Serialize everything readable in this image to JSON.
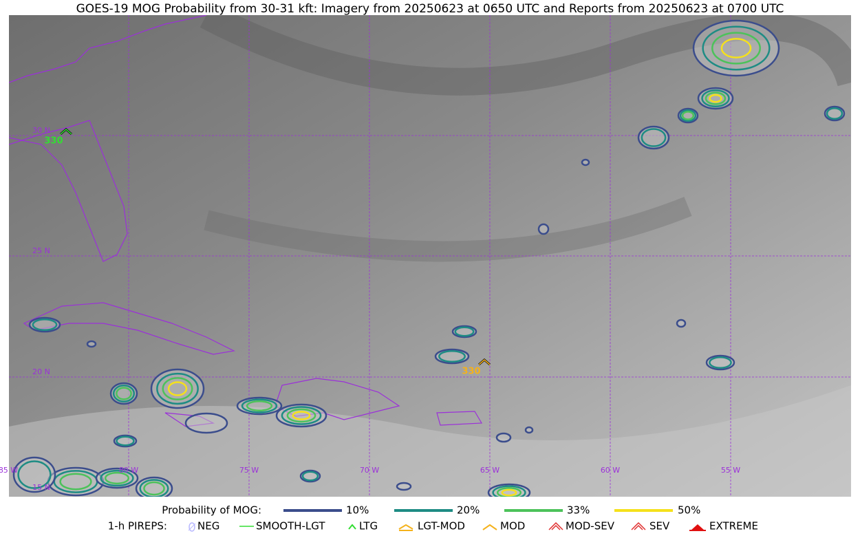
{
  "title": "GOES-19 MOG Probability from 30-31 kft: Imagery from 20250623 at 0650 UTC and Reports from 20250623 at 0700 UTC",
  "map": {
    "lat_labels": [
      "30 N",
      "25 N",
      "20 N",
      "15 N"
    ],
    "lon_labels": [
      "85 W",
      "80 W",
      "75 W",
      "70 W",
      "65 W",
      "60 W",
      "55 W"
    ],
    "pireps": [
      {
        "label": "330"
      },
      {
        "label": "330"
      }
    ]
  },
  "legend": {
    "mog_title": "Probability of MOG:",
    "mog_levels": [
      "10%",
      "20%",
      "33%",
      "50%"
    ],
    "pirep_title": "1-h PIREPS:",
    "pirep_types": [
      "NEG",
      "SMOOTH-LGT",
      "LTG",
      "LGT-MOD",
      "MOD",
      "MOD-SEV",
      "SEV",
      "EXTREME"
    ]
  }
}
